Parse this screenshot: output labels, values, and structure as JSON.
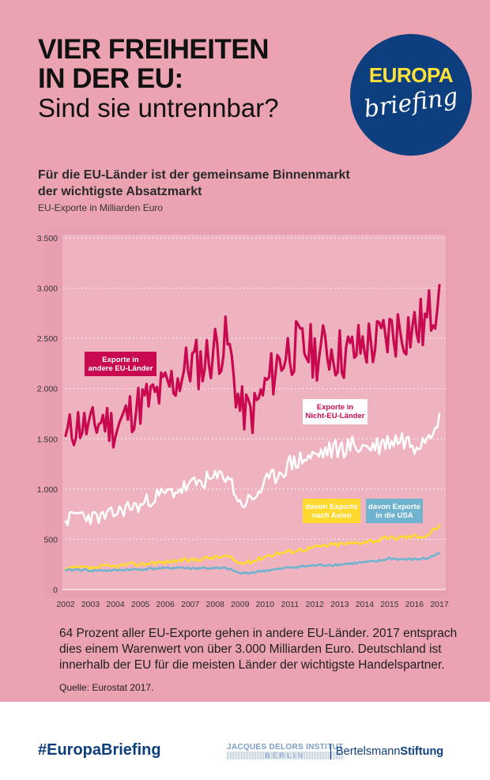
{
  "header": {
    "title_line1": "VIER FREIHEITEN",
    "title_line2": "IN DER EU:",
    "title_line3": "Sind sie untrennbar?",
    "logo_line1": "EUROPA",
    "logo_line2": "briefing"
  },
  "colors": {
    "background": "#eba3b2",
    "plot_background": "#efb3c0",
    "eu_series": "#c8084f",
    "non_eu_series": "#ffffff",
    "asia_series": "#ffd92e",
    "usa_series": "#6fb3cf",
    "brand_blue": "#0d3f7e",
    "brand_yellow": "#ffe13a"
  },
  "chart_data": {
    "type": "line",
    "title": "Für die EU-Länder ist der gemeinsame Binnenmarkt der wichtigste Absatzmarkt",
    "subtitle": "EU-Exporte in Milliarden Euro",
    "xlabel": "",
    "ylabel": "",
    "x": [
      2002.0,
      2002.5,
      2003.0,
      2003.5,
      2004.0,
      2004.5,
      2005.0,
      2005.5,
      2006.0,
      2006.5,
      2007.0,
      2007.5,
      2008.0,
      2008.5,
      2009.0,
      2009.5,
      2010.0,
      2010.5,
      2011.0,
      2011.5,
      2012.0,
      2012.5,
      2013.0,
      2013.5,
      2014.0,
      2014.5,
      2015.0,
      2015.5,
      2016.0,
      2016.5,
      2017.0
    ],
    "x_ticks": [
      "2002",
      "2003",
      "2004",
      "2005",
      "2006",
      "2007",
      "2008",
      "2009",
      "2010",
      "2011",
      "2012",
      "2013",
      "2014",
      "2015",
      "2016",
      "2017"
    ],
    "y_ticks": [
      "0",
      "500",
      "1.000",
      "1.500",
      "2.000",
      "2.500",
      "3.000",
      "3.500"
    ],
    "y_tick_values": [
      0,
      500,
      1000,
      1500,
      2000,
      2500,
      3000,
      3500
    ],
    "xlim": [
      2002,
      2017
    ],
    "ylim": [
      0,
      3500
    ],
    "grid": "horizontal dotted",
    "series": [
      {
        "name": "Exporte in andere EU-Länder",
        "key": "eu",
        "values": [
          1530,
          1650,
          1600,
          1700,
          1600,
          1750,
          1850,
          1900,
          2000,
          2100,
          2250,
          2250,
          2400,
          2450,
          1800,
          1750,
          2000,
          2250,
          2400,
          2400,
          2350,
          2400,
          2350,
          2350,
          2450,
          2450,
          2550,
          2600,
          2600,
          2650,
          3030
        ]
      },
      {
        "name": "Exporte in Nicht-EU-Länder",
        "key": "noneu",
        "values": [
          680,
          760,
          720,
          720,
          760,
          820,
          830,
          920,
          950,
          990,
          1030,
          1080,
          1100,
          1150,
          850,
          900,
          1050,
          1150,
          1250,
          1300,
          1330,
          1380,
          1400,
          1430,
          1420,
          1430,
          1480,
          1500,
          1450,
          1550,
          1750
        ]
      },
      {
        "name": "davon Exporte nach Asien",
        "key": "asia",
        "values": [
          200,
          220,
          210,
          230,
          230,
          250,
          250,
          270,
          270,
          290,
          290,
          310,
          320,
          330,
          260,
          280,
          330,
          360,
          380,
          400,
          420,
          440,
          450,
          460,
          480,
          490,
          510,
          520,
          530,
          540,
          640
        ]
      },
      {
        "name": "davon Exporte in die USA",
        "key": "usa",
        "values": [
          190,
          200,
          190,
          190,
          190,
          200,
          200,
          210,
          210,
          220,
          210,
          215,
          210,
          210,
          160,
          170,
          190,
          200,
          220,
          230,
          240,
          245,
          250,
          260,
          270,
          280,
          310,
          300,
          300,
          310,
          360
        ]
      }
    ],
    "labels": {
      "eu": [
        "Exporte in",
        "andere EU-Länder"
      ],
      "noneu": [
        "Exporte in",
        "Nicht-EU-Länder"
      ],
      "asia": [
        "davon Exporte",
        "nach Asien"
      ],
      "usa": [
        "davon Exporte",
        "in die USA"
      ]
    }
  },
  "body": {
    "description": "64 Prozent aller EU-Exporte gehen in andere EU-Länder. 2017 entsprach dies einem Warenwert von über 3.000 Milliarden Euro. Deutschland ist innerhalb der EU für die meisten Länder der wichtigste Handelspartner.",
    "source": "Quelle: Eurostat 2017."
  },
  "footer": {
    "hashtag": "#EuropaBriefing",
    "jdi_line1": "JACQUES DELORS INSTITUT",
    "jdi_line2": "BERLIN",
    "bertelsmann_light": "Bertelsmann",
    "bertelsmann_bold": "Stiftung"
  }
}
